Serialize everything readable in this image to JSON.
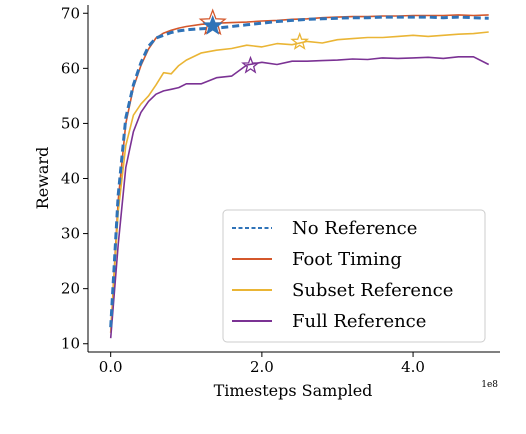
{
  "chart_data": {
    "type": "line",
    "xlabel": "Timesteps Sampled",
    "ylabel": "Reward",
    "x_offset_label": "1e8",
    "xlim": [
      -0.3,
      5.15
    ],
    "ylim": [
      8.5,
      71.5
    ],
    "xticks": [
      0.0,
      2.0,
      4.0
    ],
    "xtick_labels": [
      "0.0",
      "2.0",
      "4.0"
    ],
    "yticks": [
      10,
      20,
      30,
      40,
      50,
      60,
      70
    ],
    "ytick_labels": [
      "10",
      "20",
      "30",
      "40",
      "50",
      "60",
      "70"
    ],
    "grid": false,
    "legend_placement": "lower-right",
    "series": [
      {
        "name": "No Reference",
        "color": "#2f73b8",
        "dash": "dashed",
        "x": [
          0.0,
          0.1,
          0.2,
          0.3,
          0.4,
          0.5,
          0.6,
          0.7,
          0.8,
          0.9,
          1.0,
          1.2,
          1.4,
          1.6,
          1.8,
          2.0,
          2.2,
          2.4,
          2.6,
          2.8,
          3.0,
          3.2,
          3.4,
          3.6,
          3.8,
          4.0,
          4.2,
          4.4,
          4.6,
          4.8,
          5.0
        ],
        "values": [
          13,
          37,
          51,
          57,
          61,
          64,
          65.5,
          66,
          66.5,
          66.8,
          67,
          67.2,
          67.3,
          67.6,
          67.9,
          68.2,
          68.5,
          68.7,
          68.9,
          69,
          69.1,
          69.2,
          69.2,
          69.3,
          69.3,
          69.3,
          69.3,
          69.2,
          69.3,
          69.2,
          69.1
        ],
        "star": {
          "x": 1.35,
          "y": 67.7
        }
      },
      {
        "name": "Foot Timing",
        "color": "#d4572b",
        "dash": "solid",
        "x": [
          0.0,
          0.1,
          0.2,
          0.3,
          0.4,
          0.5,
          0.6,
          0.7,
          0.8,
          0.9,
          1.0,
          1.2,
          1.4,
          1.6,
          1.8,
          2.0,
          2.2,
          2.4,
          2.6,
          2.8,
          3.0,
          3.2,
          3.4,
          3.6,
          3.8,
          4.0,
          4.2,
          4.4,
          4.6,
          4.8,
          5.0
        ],
        "values": [
          12,
          36,
          50,
          56.5,
          60.5,
          63.5,
          65.5,
          66.4,
          66.9,
          67.3,
          67.6,
          68,
          68.2,
          68.3,
          68.4,
          68.6,
          68.7,
          68.9,
          69,
          69.2,
          69.3,
          69.4,
          69.4,
          69.5,
          69.5,
          69.6,
          69.6,
          69.6,
          69.7,
          69.6,
          69.7
        ],
        "star": {
          "x": 1.35,
          "y": 68.2
        }
      },
      {
        "name": "Subset Reference",
        "color": "#eab535",
        "dash": "solid",
        "x": [
          0.0,
          0.1,
          0.2,
          0.3,
          0.4,
          0.5,
          0.6,
          0.7,
          0.8,
          0.9,
          1.0,
          1.2,
          1.4,
          1.6,
          1.8,
          2.0,
          2.2,
          2.4,
          2.6,
          2.8,
          3.0,
          3.2,
          3.4,
          3.6,
          3.8,
          4.0,
          4.2,
          4.4,
          4.6,
          4.8,
          5.0
        ],
        "values": [
          12,
          34,
          46,
          51.5,
          53.5,
          55,
          57,
          59.2,
          59,
          60.5,
          61.5,
          62.8,
          63.3,
          63.6,
          64.2,
          63.9,
          64.5,
          64.3,
          64.9,
          64.6,
          65.2,
          65.4,
          65.6,
          65.6,
          65.8,
          66.0,
          65.8,
          66.0,
          66.2,
          66.3,
          66.6
        ],
        "star": {
          "x": 2.5,
          "y": 64.8
        }
      },
      {
        "name": "Full Reference",
        "color": "#7b3294",
        "dash": "solid",
        "x": [
          0.0,
          0.1,
          0.2,
          0.3,
          0.4,
          0.5,
          0.6,
          0.7,
          0.8,
          0.9,
          1.0,
          1.2,
          1.4,
          1.6,
          1.8,
          2.0,
          2.2,
          2.4,
          2.6,
          2.8,
          3.0,
          3.2,
          3.4,
          3.6,
          3.8,
          4.0,
          4.2,
          4.4,
          4.6,
          4.8,
          5.0
        ],
        "values": [
          11,
          28,
          42,
          48.5,
          52,
          54,
          55.3,
          55.9,
          56.2,
          56.5,
          57.2,
          57.2,
          58.3,
          58.6,
          60.6,
          61.1,
          60.7,
          61.3,
          61.3,
          61.4,
          61.5,
          61.7,
          61.6,
          61.9,
          61.8,
          61.9,
          62.0,
          61.8,
          62.1,
          62.1,
          60.7
        ],
        "star": {
          "x": 1.85,
          "y": 60.5
        }
      }
    ]
  }
}
